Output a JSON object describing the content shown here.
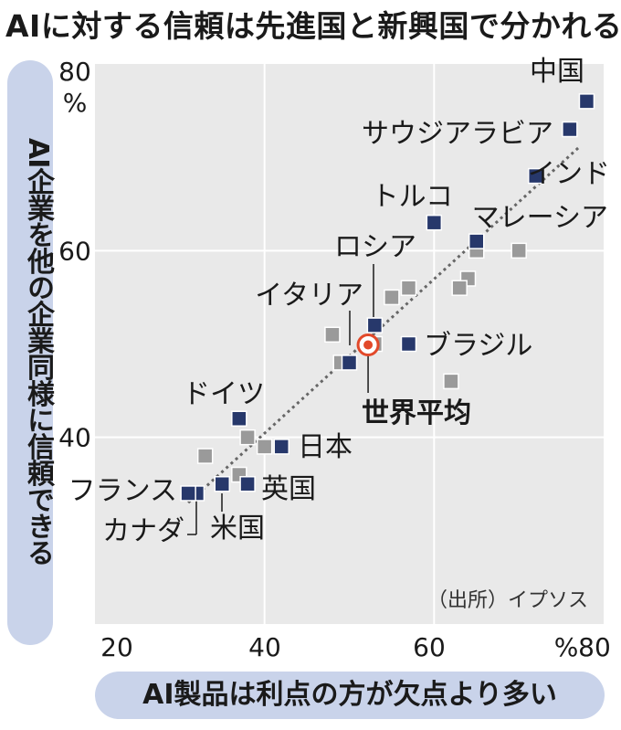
{
  "title": "AIに対する信頼は先進国と新興国で分かれる",
  "chart_data": {
    "type": "scatter",
    "title": "AIに対する信頼は先進国と新興国で分かれる",
    "xlabel": "AI製品は利点の方が欠点より多い",
    "ylabel": "AI企業を他の企業同様に信頼できる",
    "unit": "%",
    "xlim": [
      20,
      80
    ],
    "ylim": [
      20,
      80
    ],
    "x_ticks": [
      "20",
      "40",
      "60",
      "80"
    ],
    "y_ticks": [
      "40",
      "60",
      "80"
    ],
    "grid": true,
    "source": "（出所）イプソス",
    "trend_line": {
      "style": "dotted",
      "from": [
        31,
        33
      ],
      "to": [
        77,
        71
      ]
    },
    "highlight_color": "#27386b",
    "other_color": "#9a9a9a",
    "average_color": "#e2492a",
    "labeled_points": [
      {
        "name": "中国",
        "x": 78,
        "y": 76
      },
      {
        "name": "サウジアラビア",
        "x": 76,
        "y": 73
      },
      {
        "name": "インド",
        "x": 72,
        "y": 68
      },
      {
        "name": "トルコ",
        "x": 60,
        "y": 63
      },
      {
        "name": "マレーシア",
        "x": 65,
        "y": 61
      },
      {
        "name": "イタリア",
        "x": 53,
        "y": 52
      },
      {
        "name": "ブラジル",
        "x": 57,
        "y": 50
      },
      {
        "name": "ロシア",
        "x": 50,
        "y": 48
      },
      {
        "name": "ドイツ",
        "x": 37,
        "y": 42
      },
      {
        "name": "日本",
        "x": 42,
        "y": 39
      },
      {
        "name": "英国",
        "x": 38,
        "y": 35
      },
      {
        "name": "米国",
        "x": 35,
        "y": 35
      },
      {
        "name": "カナダ",
        "x": 32,
        "y": 34
      },
      {
        "name": "フランス",
        "x": 31,
        "y": 34
      }
    ],
    "other_points": [
      {
        "x": 70,
        "y": 60
      },
      {
        "x": 65,
        "y": 60
      },
      {
        "x": 64,
        "y": 57
      },
      {
        "x": 63,
        "y": 56
      },
      {
        "x": 57,
        "y": 56
      },
      {
        "x": 55,
        "y": 55
      },
      {
        "x": 48,
        "y": 51
      },
      {
        "x": 49,
        "y": 48
      },
      {
        "x": 53,
        "y": 50
      },
      {
        "x": 62,
        "y": 46
      },
      {
        "x": 38,
        "y": 40
      },
      {
        "x": 40,
        "y": 39
      },
      {
        "x": 33,
        "y": 38
      },
      {
        "x": 37,
        "y": 36
      }
    ],
    "average_point": {
      "name": "世界平均",
      "x": 52,
      "y": 50
    }
  }
}
